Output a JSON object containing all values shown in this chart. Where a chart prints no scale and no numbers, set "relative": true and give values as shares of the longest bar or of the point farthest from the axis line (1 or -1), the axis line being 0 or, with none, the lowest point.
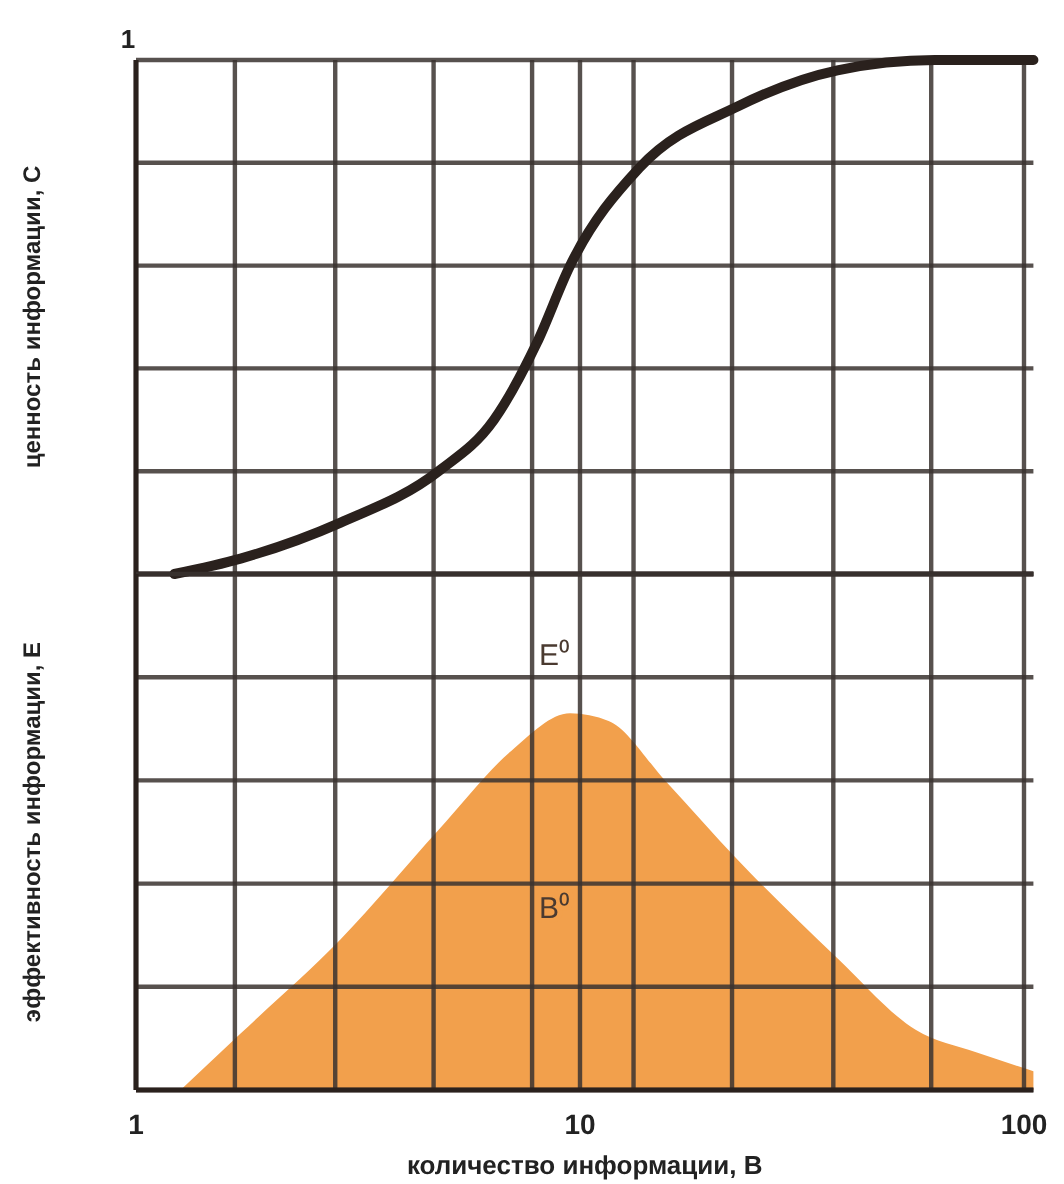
{
  "chart_data": [
    {
      "type": "line",
      "ylabel": "ценность информации, С",
      "relative": true,
      "xlim": [
        1,
        105
      ],
      "xticks": [
        1,
        {
          "value": 1.67,
          "label": null
        },
        {
          "value": 2.81,
          "label": null
        },
        {
          "value": 4.68,
          "label": null
        },
        {
          "value": 7.8,
          "label": null
        },
        10,
        {
          "value": 13.2,
          "label": null
        },
        {
          "value": 22,
          "label": null
        },
        {
          "value": 37.2,
          "label": null
        },
        {
          "value": 61.8,
          "label": null
        },
        100
      ],
      "log": "x",
      "grid": true,
      "tick_labels": false,
      "annotations": [
        "1"
      ],
      "series": [
        {
          "color": "#2a211d",
          "x": [
            1.22,
            1.72,
            2.89,
            4.8,
            6.4,
            8.0,
            9.5,
            13.6,
            22.7,
            38,
            63,
            105
          ],
          "values": [
            0,
            0.03,
            0.1,
            0.2,
            0.3,
            0.45,
            0.6,
            0.79,
            0.91,
            0.98,
            1,
            1
          ]
        }
      ]
    },
    {
      "type": "area",
      "ylabel": "эффективность информации, Е",
      "xlabel": "количество информации, В",
      "relative": true,
      "xlim": [
        1,
        105
      ],
      "xticks": [
        1,
        {
          "value": 1.67,
          "label": null
        },
        {
          "value": 2.81,
          "label": null
        },
        {
          "value": 4.68,
          "label": null
        },
        {
          "value": 7.8,
          "label": null
        },
        10,
        {
          "value": 13.2,
          "label": null
        },
        {
          "value": 22,
          "label": null
        },
        {
          "value": 37.2,
          "label": null
        },
        {
          "value": 61.8,
          "label": null
        },
        100
      ],
      "log": "x",
      "grid": true,
      "tick_labels": "x",
      "annotations": [
        "E⁰",
        "B⁰"
      ],
      "series": [
        {
          "color": "#f2a04c",
          "x": [
            1.26,
            1.72,
            2.89,
            4.8,
            7.0,
            9.5,
            11.6,
            15.6,
            22.7,
            38,
            57,
            78,
            105
          ],
          "values": [
            0,
            0.15,
            0.4,
            0.69,
            0.9,
            1,
            0.98,
            0.82,
            0.61,
            0.35,
            0.16,
            0.1,
            0.05
          ]
        }
      ]
    }
  ]
}
